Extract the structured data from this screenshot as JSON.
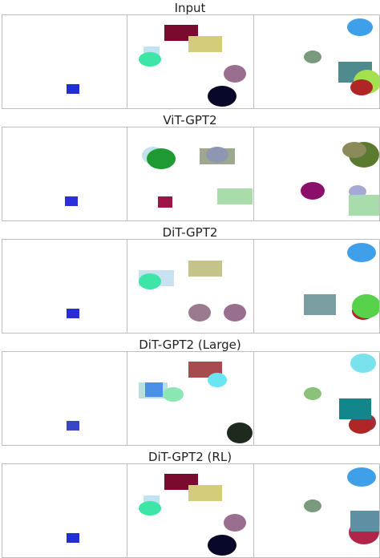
{
  "sections": [
    {
      "title": "Input",
      "panels": [
        [
          {
            "t": "rect",
            "color": "#1f2fd0"
          }
        ],
        [
          {
            "t": "rect",
            "color": "#7a0a2e"
          },
          {
            "t": "rect",
            "color": "#d4cc7a"
          },
          {
            "t": "rect",
            "color": "#bfe3f2"
          },
          {
            "t": "ellipse",
            "color": "#3de6a6"
          },
          {
            "t": "ellipse",
            "color": "#9a6e8e"
          },
          {
            "t": "ellipse",
            "color": "#08082a"
          }
        ],
        [
          {
            "t": "ellipse",
            "color": "#3f9fe8"
          },
          {
            "t": "ellipse",
            "color": "#7a9a7e"
          },
          {
            "t": "rect",
            "color": "#4e8a8e"
          },
          {
            "t": "ellipse",
            "color": "#a3e24e"
          },
          {
            "t": "ellipse",
            "color": "#b02626"
          }
        ]
      ]
    },
    {
      "title": "ViT-GPT2",
      "panels": [
        [
          {
            "t": "rect",
            "color": "#2a30d6"
          }
        ],
        [
          {
            "t": "ellipse",
            "color": "#bfe4ea"
          },
          {
            "t": "ellipse",
            "color": "#1f9a32"
          },
          {
            "t": "rect",
            "color": "#9ea88e"
          },
          {
            "t": "ellipse",
            "color": "#8e96b2"
          },
          {
            "t": "rect",
            "color": "#9e1446"
          },
          {
            "t": "rect",
            "color": "#a8dcaa"
          }
        ],
        [
          {
            "t": "ellipse",
            "color": "#5a7a30"
          },
          {
            "t": "ellipse",
            "color": "#8a8a5a"
          },
          {
            "t": "ellipse",
            "color": "#8a0e6a"
          },
          {
            "t": "ellipse",
            "color": "#a6a8d6"
          },
          {
            "t": "rect",
            "color": "#a8dcaa"
          }
        ]
      ]
    },
    {
      "title": "DiT-GPT2",
      "panels": [
        [
          {
            "t": "rect",
            "color": "#2a2ed2"
          }
        ],
        [
          {
            "t": "rect",
            "color": "#c7e2f0"
          },
          {
            "t": "rect",
            "color": "#c4c48a"
          },
          {
            "t": "ellipse",
            "color": "#3de6a6"
          },
          {
            "t": "ellipse",
            "color": "#9a7a8e"
          },
          {
            "t": "ellipse",
            "color": "#9a6e8e"
          }
        ],
        [
          {
            "t": "ellipse",
            "color": "#3f9fe8"
          },
          {
            "t": "rect",
            "color": "#7a9ea2"
          },
          {
            "t": "ellipse",
            "color": "#b02626"
          },
          {
            "t": "ellipse",
            "color": "#57d24a"
          }
        ]
      ]
    },
    {
      "title": "DiT-GPT2 (Large)",
      "panels": [
        [
          {
            "t": "rect",
            "color": "#3a44c6"
          }
        ],
        [
          {
            "t": "rect",
            "color": "#a84a4e"
          },
          {
            "t": "ellipse",
            "color": "#6ae6f2"
          },
          {
            "t": "rect",
            "color": "#b9dfe2"
          },
          {
            "t": "rect",
            "color": "#4a90e8"
          },
          {
            "t": "ellipse",
            "color": "#8ae6b2"
          },
          {
            "t": "ellipse",
            "color": "#1e2a1e"
          }
        ],
        [
          {
            "t": "ellipse",
            "color": "#7ae2ec"
          },
          {
            "t": "ellipse",
            "color": "#8ac27a"
          },
          {
            "t": "ellipse",
            "color": "#a0303a"
          },
          {
            "t": "ellipse",
            "color": "#b02626"
          },
          {
            "t": "rect",
            "color": "#12868a"
          }
        ]
      ]
    },
    {
      "title": "DiT-GPT2 (RL)",
      "panels": [
        [
          {
            "t": "rect",
            "color": "#1f2fd0"
          }
        ],
        [
          {
            "t": "rect",
            "color": "#7a0a2e"
          },
          {
            "t": "rect",
            "color": "#d4cc7a"
          },
          {
            "t": "rect",
            "color": "#bfe3f2"
          },
          {
            "t": "ellipse",
            "color": "#3de6a6"
          },
          {
            "t": "ellipse",
            "color": "#9a6e8e"
          },
          {
            "t": "ellipse",
            "color": "#08082a"
          }
        ],
        [
          {
            "t": "ellipse",
            "color": "#3f9fe8"
          },
          {
            "t": "ellipse",
            "color": "#7a9a7e"
          },
          {
            "t": "ellipse",
            "color": "#b0264a"
          },
          {
            "t": "rect",
            "color": "#5e8fa2"
          }
        ]
      ]
    }
  ]
}
